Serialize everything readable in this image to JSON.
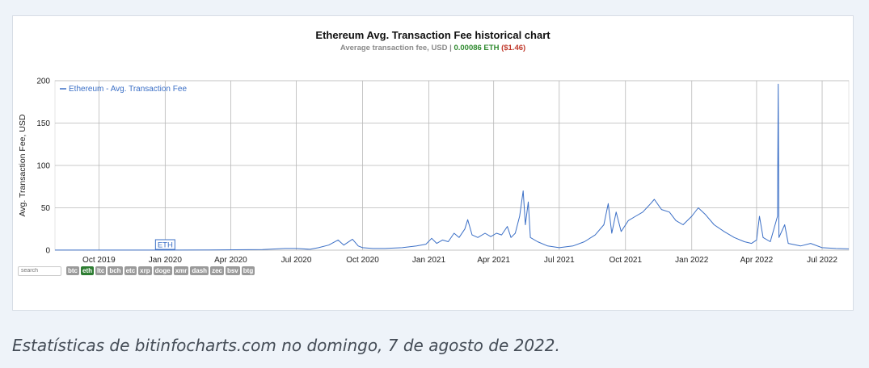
{
  "caption": "Estatísticas de bitinfocharts.com no domingo, 7 de agosto de 2022.",
  "controls": {
    "search_placeholder": "search",
    "coins": [
      {
        "label": "btc",
        "active": false
      },
      {
        "label": "eth",
        "active": true
      },
      {
        "label": "ltc",
        "active": false
      },
      {
        "label": "bch",
        "active": false
      },
      {
        "label": "etc",
        "active": false
      },
      {
        "label": "xrp",
        "active": false
      },
      {
        "label": "doge",
        "active": false
      },
      {
        "label": "xmr",
        "active": false
      },
      {
        "label": "dash",
        "active": false
      },
      {
        "label": "zec",
        "active": false
      },
      {
        "label": "bsv",
        "active": false
      },
      {
        "label": "btg",
        "active": false
      }
    ]
  },
  "colors": {
    "line": "#3b6fc6",
    "grid": "#b8b8b8",
    "eth_value": "#2f8a2f",
    "usd_value": "#c0392b"
  },
  "chart_data": {
    "type": "line",
    "title": "Ethereum Avg. Transaction Fee historical chart",
    "subtitle_prefix": "Average transaction fee, USD |",
    "subtitle_eth": "0.00086 ETH",
    "subtitle_usd": "($1.46)",
    "ylabel": "Avg. Transaction Fee, USD",
    "ylim": [
      0,
      200
    ],
    "yticks": [
      0,
      50,
      100,
      150,
      200
    ],
    "xlim": [
      "2019-08-01",
      "2022-08-07"
    ],
    "xticks": [
      {
        "date": "2019-10-01",
        "label": "Oct 2019"
      },
      {
        "date": "2020-01-01",
        "label": "Jan 2020"
      },
      {
        "date": "2020-04-01",
        "label": "Apr 2020"
      },
      {
        "date": "2020-07-01",
        "label": "Jul 2020"
      },
      {
        "date": "2020-10-01",
        "label": "Oct 2020"
      },
      {
        "date": "2021-01-01",
        "label": "Jan 2021"
      },
      {
        "date": "2021-04-01",
        "label": "Apr 2021"
      },
      {
        "date": "2021-07-01",
        "label": "Jul 2021"
      },
      {
        "date": "2021-10-01",
        "label": "Oct 2021"
      },
      {
        "date": "2022-01-01",
        "label": "Jan 2022"
      },
      {
        "date": "2022-04-01",
        "label": "Apr 2022"
      },
      {
        "date": "2022-07-01",
        "label": "Jul 2022"
      }
    ],
    "legend": "Ethereum - Avg. Transaction Fee",
    "legend_position": "top-left",
    "grid": true,
    "annotation": {
      "date": "2020-01-01",
      "label": "ETH"
    },
    "series": [
      {
        "name": "Ethereum - Avg. Transaction Fee",
        "points": [
          [
            "2019-08-01",
            0.1
          ],
          [
            "2019-10-01",
            0.1
          ],
          [
            "2020-01-01",
            0.1
          ],
          [
            "2020-03-01",
            0.3
          ],
          [
            "2020-05-15",
            0.8
          ],
          [
            "2020-06-15",
            2
          ],
          [
            "2020-07-01",
            2
          ],
          [
            "2020-07-20",
            1
          ],
          [
            "2020-08-01",
            3
          ],
          [
            "2020-08-15",
            6
          ],
          [
            "2020-08-28",
            12
          ],
          [
            "2020-09-05",
            6
          ],
          [
            "2020-09-17",
            13
          ],
          [
            "2020-09-25",
            5
          ],
          [
            "2020-10-01",
            3
          ],
          [
            "2020-10-15",
            2
          ],
          [
            "2020-11-01",
            2
          ],
          [
            "2020-11-25",
            3
          ],
          [
            "2020-12-15",
            5
          ],
          [
            "2020-12-28",
            7
          ],
          [
            "2021-01-05",
            14
          ],
          [
            "2021-01-12",
            8
          ],
          [
            "2021-01-20",
            12
          ],
          [
            "2021-01-28",
            10
          ],
          [
            "2021-02-05",
            20
          ],
          [
            "2021-02-12",
            15
          ],
          [
            "2021-02-20",
            25
          ],
          [
            "2021-02-24",
            36
          ],
          [
            "2021-03-02",
            18
          ],
          [
            "2021-03-10",
            15
          ],
          [
            "2021-03-20",
            20
          ],
          [
            "2021-03-28",
            16
          ],
          [
            "2021-04-05",
            20
          ],
          [
            "2021-04-12",
            18
          ],
          [
            "2021-04-20",
            28
          ],
          [
            "2021-04-25",
            15
          ],
          [
            "2021-05-01",
            20
          ],
          [
            "2021-05-07",
            40
          ],
          [
            "2021-05-12",
            70
          ],
          [
            "2021-05-15",
            30
          ],
          [
            "2021-05-19",
            57
          ],
          [
            "2021-05-22",
            15
          ],
          [
            "2021-06-01",
            10
          ],
          [
            "2021-06-15",
            5
          ],
          [
            "2021-07-01",
            3
          ],
          [
            "2021-07-20",
            5
          ],
          [
            "2021-08-05",
            10
          ],
          [
            "2021-08-20",
            18
          ],
          [
            "2021-09-01",
            30
          ],
          [
            "2021-09-07",
            55
          ],
          [
            "2021-09-12",
            20
          ],
          [
            "2021-09-18",
            45
          ],
          [
            "2021-09-25",
            22
          ],
          [
            "2021-10-05",
            35
          ],
          [
            "2021-10-15",
            40
          ],
          [
            "2021-10-25",
            45
          ],
          [
            "2021-11-05",
            55
          ],
          [
            "2021-11-10",
            60
          ],
          [
            "2021-11-20",
            48
          ],
          [
            "2021-12-01",
            45
          ],
          [
            "2021-12-10",
            35
          ],
          [
            "2021-12-20",
            30
          ],
          [
            "2022-01-01",
            40
          ],
          [
            "2022-01-10",
            50
          ],
          [
            "2022-01-20",
            42
          ],
          [
            "2022-02-01",
            30
          ],
          [
            "2022-02-15",
            22
          ],
          [
            "2022-03-01",
            15
          ],
          [
            "2022-03-15",
            10
          ],
          [
            "2022-03-25",
            8
          ],
          [
            "2022-04-01",
            12
          ],
          [
            "2022-04-05",
            40
          ],
          [
            "2022-04-10",
            15
          ],
          [
            "2022-04-20",
            10
          ],
          [
            "2022-04-30",
            40
          ],
          [
            "2022-05-01",
            196
          ],
          [
            "2022-05-02",
            15
          ],
          [
            "2022-05-10",
            30
          ],
          [
            "2022-05-15",
            8
          ],
          [
            "2022-06-01",
            5
          ],
          [
            "2022-06-15",
            8
          ],
          [
            "2022-07-01",
            3
          ],
          [
            "2022-07-20",
            2
          ],
          [
            "2022-08-07",
            1.5
          ]
        ]
      }
    ]
  }
}
